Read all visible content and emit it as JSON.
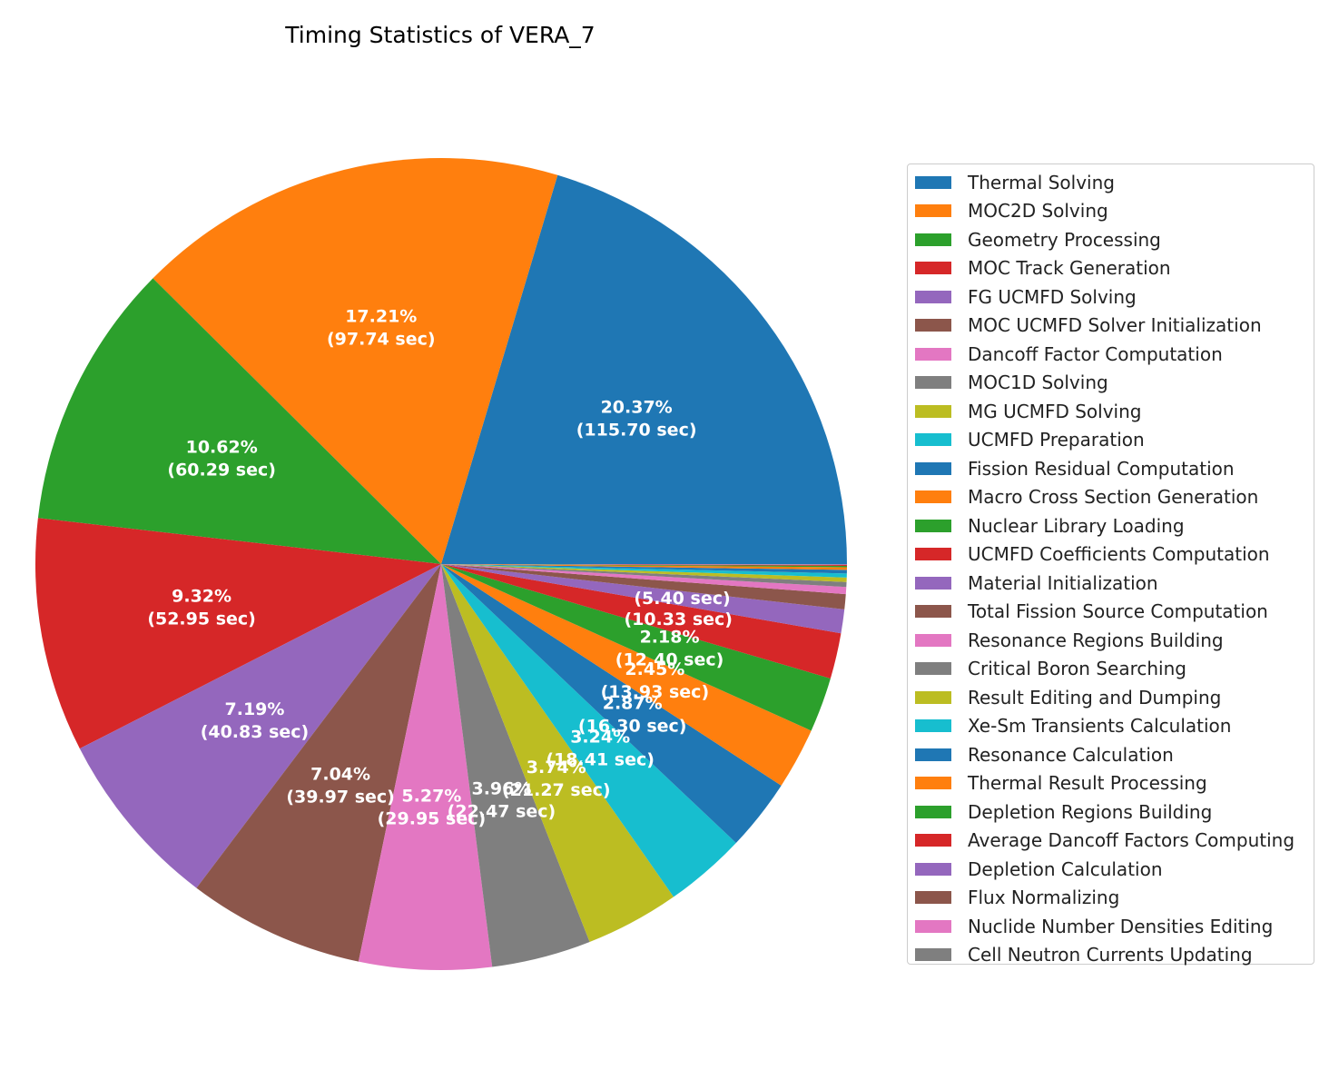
{
  "chart_data": {
    "type": "pie",
    "title": "Timing Statistics of VERA_7",
    "unit": "sec",
    "legend_position": "right",
    "slices": [
      {
        "label": "Thermal Solving",
        "value": 115.7,
        "percent": "20.37%",
        "time_label": "(115.70 sec)",
        "color": "#1f77b4"
      },
      {
        "label": "MOC2D Solving",
        "value": 97.74,
        "percent": "17.21%",
        "time_label": "(97.74 sec)",
        "color": "#ff7f0e"
      },
      {
        "label": "Geometry Processing",
        "value": 60.29,
        "percent": "10.62%",
        "time_label": "(60.29 sec)",
        "color": "#2ca02c"
      },
      {
        "label": "MOC Track Generation",
        "value": 52.95,
        "percent": "9.32%",
        "time_label": "(52.95 sec)",
        "color": "#d62728"
      },
      {
        "label": "FG UCMFD Solving",
        "value": 40.83,
        "percent": "7.19%",
        "time_label": "(40.83 sec)",
        "color": "#9467bd"
      },
      {
        "label": "MOC UCMFD Solver Initialization",
        "value": 39.97,
        "percent": "7.04%",
        "time_label": "(39.97 sec)",
        "color": "#8c564b"
      },
      {
        "label": "Dancoff Factor Computation",
        "value": 29.95,
        "percent": "5.27%",
        "time_label": "(29.95 sec)",
        "color": "#e377c2"
      },
      {
        "label": "MOC1D Solving",
        "value": 22.47,
        "percent": "3.96%",
        "time_label": "(22.47 sec)",
        "color": "#7f7f7f"
      },
      {
        "label": "MG UCMFD Solving",
        "value": 21.27,
        "percent": "3.74%",
        "time_label": "(21.27 sec)",
        "color": "#bcbd22"
      },
      {
        "label": "UCMFD Preparation",
        "value": 18.41,
        "percent": "3.24%",
        "time_label": "(18.41 sec)",
        "color": "#17becf"
      },
      {
        "label": "Fission Residual Computation",
        "value": 16.3,
        "percent": "2.87%",
        "time_label": "(16.30 sec)",
        "color": "#1f77b4"
      },
      {
        "label": "Macro Cross Section Generation",
        "value": 13.93,
        "percent": "2.45%",
        "time_label": "(13.93 sec)",
        "color": "#ff7f0e"
      },
      {
        "label": "Nuclear Library Loading",
        "value": 12.4,
        "percent": "2.18%",
        "time_label": "(12.40 sec)",
        "color": "#2ca02c"
      },
      {
        "label": "UCMFD Coefficients Computation",
        "value": 10.33,
        "percent": "",
        "time_label": "(10.33 sec)",
        "color": "#d62728"
      },
      {
        "label": "Material Initialization",
        "value": 5.4,
        "percent": "",
        "time_label": "(5.40 sec)",
        "color": "#9467bd"
      },
      {
        "label": "Total Fission Source Computation",
        "value": 3.4,
        "percent": "",
        "time_label": "",
        "color": "#8c564b"
      },
      {
        "label": "Resonance Regions Building",
        "value": 1.6,
        "percent": "",
        "time_label": "",
        "color": "#e377c2"
      },
      {
        "label": "Critical Boron Searching",
        "value": 1.1,
        "percent": "",
        "time_label": "",
        "color": "#7f7f7f"
      },
      {
        "label": "Result Editing and Dumping",
        "value": 1.0,
        "percent": "",
        "time_label": "",
        "color": "#bcbd22"
      },
      {
        "label": "Xe-Sm Transients Calculation",
        "value": 0.9,
        "percent": "",
        "time_label": "",
        "color": "#17becf"
      },
      {
        "label": "Resonance Calculation",
        "value": 0.8,
        "percent": "",
        "time_label": "",
        "color": "#1f77b4"
      },
      {
        "label": "Thermal Result Processing",
        "value": 0.6,
        "percent": "",
        "time_label": "",
        "color": "#ff7f0e"
      },
      {
        "label": "Depletion Regions Building",
        "value": 0.3,
        "percent": "",
        "time_label": "",
        "color": "#2ca02c"
      },
      {
        "label": "Average Dancoff Factors Computing",
        "value": 0.2,
        "percent": "",
        "time_label": "",
        "color": "#d62728"
      },
      {
        "label": "Depletion Calculation",
        "value": 0.1,
        "percent": "",
        "time_label": "",
        "color": "#9467bd"
      },
      {
        "label": "Flux Normalizing",
        "value": 0.05,
        "percent": "",
        "time_label": "",
        "color": "#8c564b"
      },
      {
        "label": "Nuclide Number Densities Editing",
        "value": 0.03,
        "percent": "",
        "time_label": "",
        "color": "#e377c2"
      },
      {
        "label": "Cell Neutron Currents Updating",
        "value": 0.02,
        "percent": "",
        "time_label": "",
        "color": "#7f7f7f"
      }
    ]
  }
}
